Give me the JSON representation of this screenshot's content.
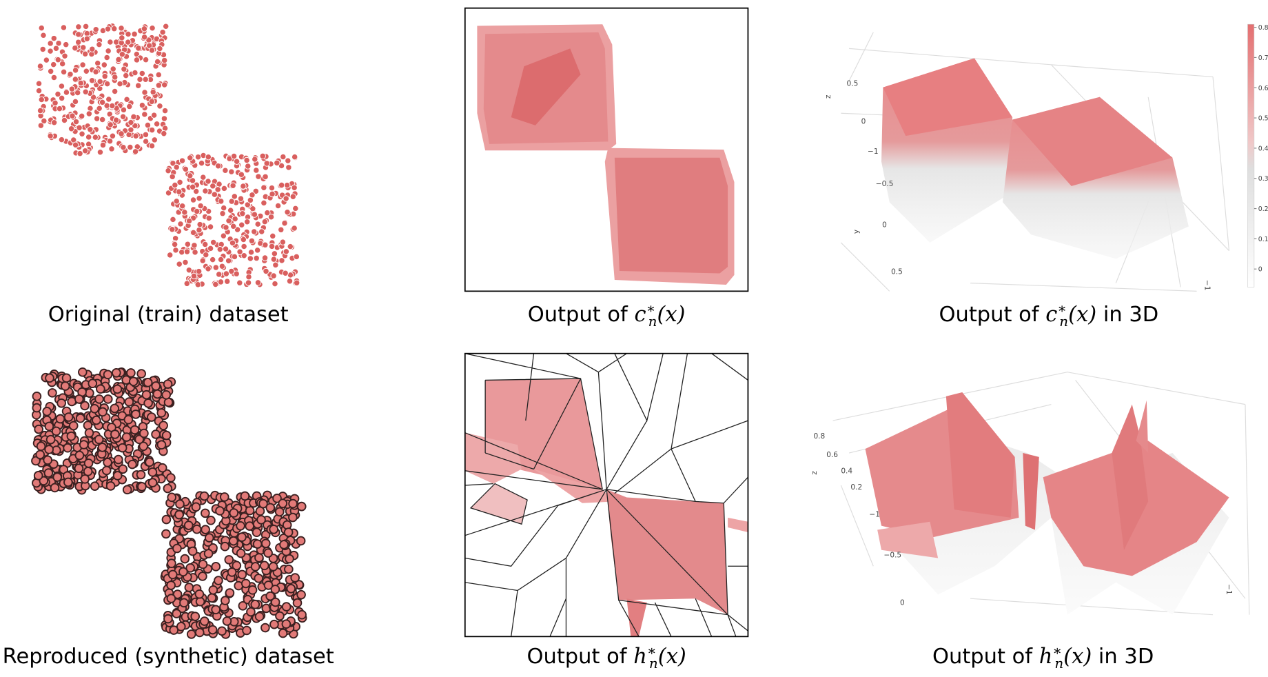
{
  "panels": [
    {
      "caption": {
        "text": "Original (train) dataset"
      }
    },
    {
      "caption": {
        "prefix": "Output of ",
        "symbol": "c",
        "sup": "∗",
        "sub": "n",
        "arg": "(x)"
      }
    },
    {
      "caption": {
        "prefix": "Output of ",
        "symbol": "c",
        "sup": "∗",
        "sub": "n",
        "arg": "(x)",
        "suffix": " in 3D"
      },
      "axis_labels": [
        "z",
        "0.5",
        "0",
        "−1",
        "−0.5",
        "y",
        "0",
        "0.5",
        "−1"
      ],
      "colorbar": {
        "lim": [
          -0.06,
          0.81
        ],
        "ticks": [
          0,
          0.1,
          0.2,
          0.3,
          0.4,
          0.5,
          0.6,
          0.7,
          0.8
        ]
      }
    },
    {
      "caption": {
        "text": "Reproduced (synthetic) dataset"
      }
    },
    {
      "caption": {
        "prefix": "Output of ",
        "symbol": "h",
        "sup": "∗",
        "sub": "n",
        "arg": "(x)"
      }
    },
    {
      "caption": {
        "prefix": "Output of ",
        "symbol": "h",
        "sup": "∗",
        "sub": "n",
        "arg": "(x)",
        "suffix": " in 3D"
      },
      "axis_labels": [
        "0.8",
        "0.6",
        "z",
        "0.4",
        "0.2",
        "−1",
        "−0.5",
        "0",
        "−1"
      ]
    }
  ]
}
